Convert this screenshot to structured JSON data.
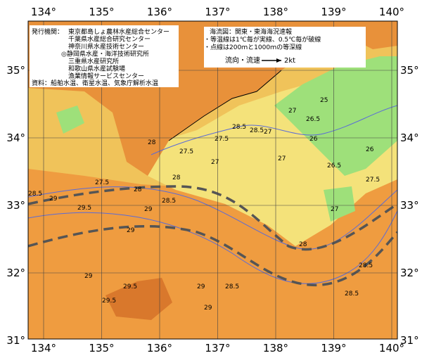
{
  "map": {
    "lon_labels": [
      "134°",
      "135°",
      "136°",
      "137°",
      "138°",
      "139°",
      "140°"
    ],
    "lat_labels": [
      "35°",
      "34°",
      "33°",
      "32°",
      "31°"
    ],
    "issuer_label": "発行機関：",
    "issuers": [
      "東京都島しょ農林水産総合センター",
      "千葉県水産総合研究センター",
      "神奈川県水産技術センター",
      "◎静岡県水産・海洋技術研究所",
      "三重県水産研究所",
      "和歌山県水産試験場",
      "漁業情報サービスセンター"
    ],
    "source": "資料：船舶水温、衛星水温、気象庁解析水温",
    "notes": [
      "海流図：関東・東海海況速報",
      "・等温線は1℃毎が実線、0.5℃毎が破線",
      "・点線は200ｍと1000ｍの等深線"
    ],
    "legend": {
      "label": "流向・流速",
      "speed": "2kt"
    },
    "contour_labels": [
      "28.5",
      "29",
      "29.5",
      "28",
      "27.5",
      "29",
      "29",
      "28.5",
      "28",
      "27.5",
      "27",
      "27.5",
      "28",
      "28.5",
      "28.5",
      "27",
      "27",
      "26.5",
      "26",
      "27",
      "26.5",
      "27.5",
      "27",
      "28",
      "28.5",
      "28.5",
      "29",
      "29.5",
      "29",
      "29.5",
      "29",
      "28.5",
      "25",
      "26"
    ]
  }
}
